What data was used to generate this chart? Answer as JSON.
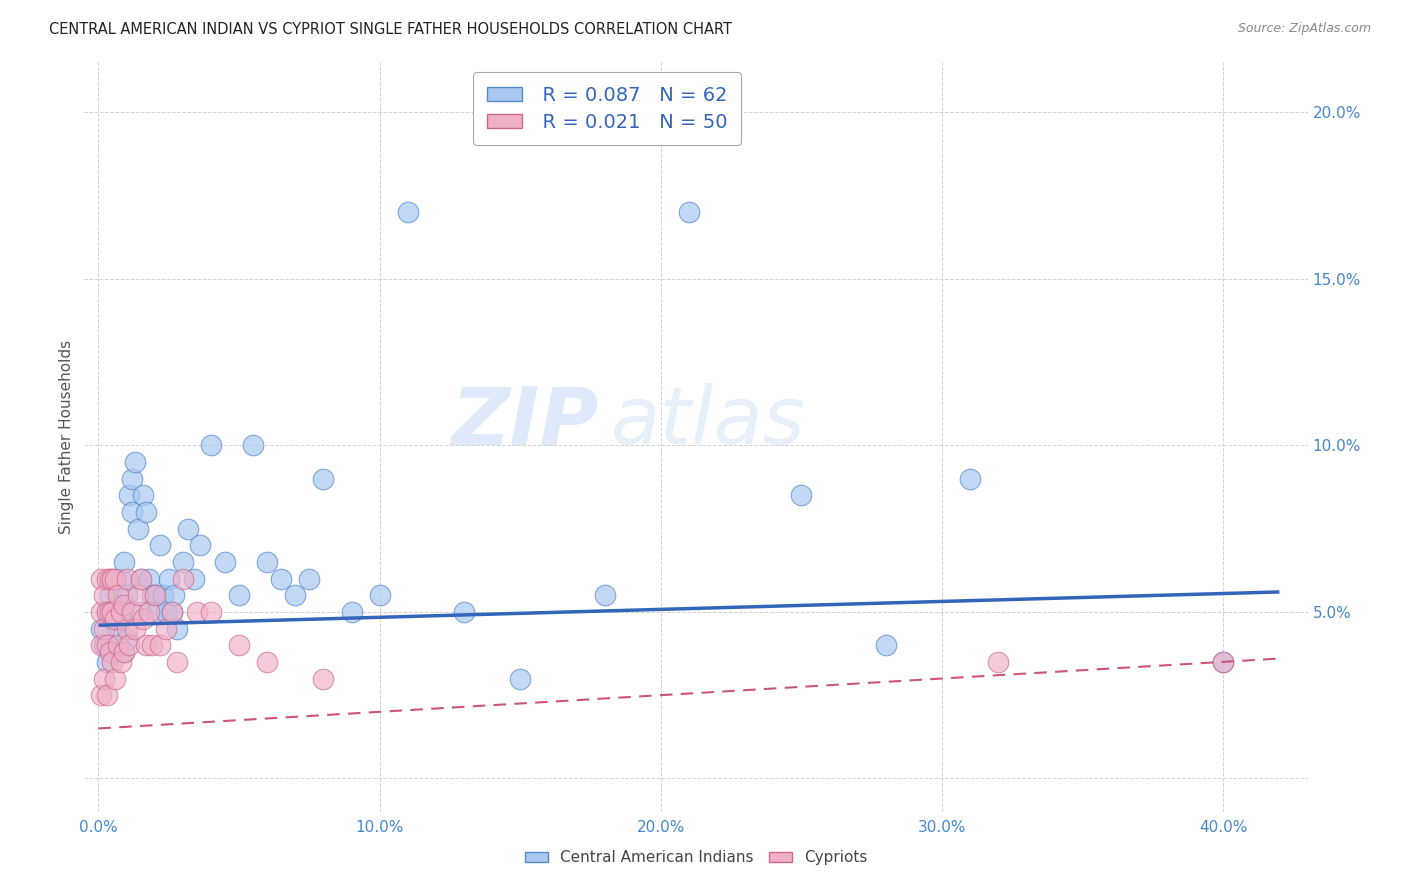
{
  "title": "CENTRAL AMERICAN INDIAN VS CYPRIOT SINGLE FATHER HOUSEHOLDS CORRELATION CHART",
  "source": "Source: ZipAtlas.com",
  "ylabel": "Single Father Households",
  "yticks": [
    0.0,
    0.05,
    0.1,
    0.15,
    0.2
  ],
  "ytick_labels": [
    "",
    "5.0%",
    "10.0%",
    "15.0%",
    "20.0%"
  ],
  "xticks": [
    0.0,
    0.1,
    0.2,
    0.3,
    0.4
  ],
  "xtick_labels": [
    "0.0%",
    "10.0%",
    "20.0%",
    "30.0%",
    "40.0%"
  ],
  "xlim": [
    -0.005,
    0.43
  ],
  "ylim": [
    -0.01,
    0.215
  ],
  "legend_blue_label": "Central American Indians",
  "legend_pink_label": "Cypriots",
  "blue_R": "R = 0.087",
  "blue_N": "N = 62",
  "pink_R": "R = 0.021",
  "pink_N": "N = 50",
  "blue_color": "#aac8f0",
  "blue_edge_color": "#5588cc",
  "blue_line_color": "#3366bb",
  "pink_color": "#f0b0c8",
  "pink_edge_color": "#cc6688",
  "pink_line_color": "#cc5577",
  "watermark_zip": "ZIP",
  "watermark_atlas": "atlas",
  "blue_scatter_x": [
    0.001,
    0.002,
    0.003,
    0.003,
    0.004,
    0.004,
    0.005,
    0.005,
    0.006,
    0.006,
    0.007,
    0.007,
    0.008,
    0.008,
    0.009,
    0.009,
    0.01,
    0.01,
    0.011,
    0.012,
    0.012,
    0.013,
    0.014,
    0.015,
    0.015,
    0.016,
    0.017,
    0.018,
    0.019,
    0.02,
    0.021,
    0.022,
    0.023,
    0.024,
    0.025,
    0.026,
    0.027,
    0.028,
    0.03,
    0.032,
    0.034,
    0.036,
    0.04,
    0.045,
    0.05,
    0.055,
    0.06,
    0.065,
    0.07,
    0.075,
    0.08,
    0.09,
    0.1,
    0.11,
    0.13,
    0.15,
    0.18,
    0.21,
    0.25,
    0.28,
    0.31,
    0.4
  ],
  "blue_scatter_y": [
    0.045,
    0.04,
    0.05,
    0.035,
    0.055,
    0.04,
    0.048,
    0.038,
    0.06,
    0.05,
    0.052,
    0.045,
    0.06,
    0.048,
    0.065,
    0.038,
    0.055,
    0.042,
    0.085,
    0.09,
    0.08,
    0.095,
    0.075,
    0.06,
    0.05,
    0.085,
    0.08,
    0.06,
    0.055,
    0.055,
    0.05,
    0.07,
    0.055,
    0.05,
    0.06,
    0.05,
    0.055,
    0.045,
    0.065,
    0.075,
    0.06,
    0.07,
    0.1,
    0.065,
    0.055,
    0.1,
    0.065,
    0.06,
    0.055,
    0.06,
    0.09,
    0.05,
    0.055,
    0.17,
    0.05,
    0.03,
    0.055,
    0.17,
    0.085,
    0.04,
    0.09,
    0.035
  ],
  "pink_scatter_x": [
    0.001,
    0.001,
    0.001,
    0.001,
    0.002,
    0.002,
    0.002,
    0.003,
    0.003,
    0.003,
    0.003,
    0.004,
    0.004,
    0.004,
    0.005,
    0.005,
    0.005,
    0.006,
    0.006,
    0.006,
    0.007,
    0.007,
    0.008,
    0.008,
    0.009,
    0.009,
    0.01,
    0.01,
    0.011,
    0.012,
    0.013,
    0.014,
    0.015,
    0.016,
    0.017,
    0.018,
    0.019,
    0.02,
    0.022,
    0.024,
    0.026,
    0.028,
    0.03,
    0.035,
    0.04,
    0.05,
    0.06,
    0.08,
    0.32,
    0.4
  ],
  "pink_scatter_y": [
    0.06,
    0.05,
    0.04,
    0.025,
    0.055,
    0.045,
    0.03,
    0.06,
    0.05,
    0.04,
    0.025,
    0.06,
    0.05,
    0.038,
    0.06,
    0.05,
    0.035,
    0.06,
    0.048,
    0.03,
    0.055,
    0.04,
    0.05,
    0.035,
    0.052,
    0.038,
    0.06,
    0.045,
    0.04,
    0.05,
    0.045,
    0.055,
    0.06,
    0.048,
    0.04,
    0.05,
    0.04,
    0.055,
    0.04,
    0.045,
    0.05,
    0.035,
    0.06,
    0.05,
    0.05,
    0.04,
    0.035,
    0.03,
    0.035,
    0.035
  ],
  "blue_trend_x": [
    0.0,
    0.42
  ],
  "blue_trend_y": [
    0.046,
    0.056
  ],
  "pink_trend_x": [
    0.0,
    0.42
  ],
  "pink_trend_y": [
    0.015,
    0.036
  ]
}
